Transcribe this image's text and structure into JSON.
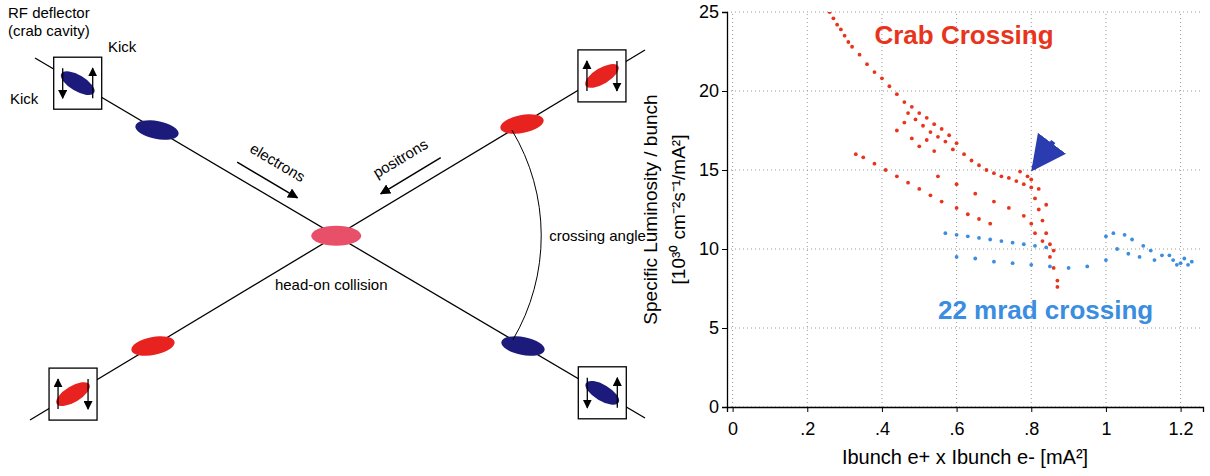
{
  "diagram": {
    "title": [
      "RF deflector",
      "(crab cavity)"
    ],
    "kick_labels": [
      "Kick",
      "Kick"
    ],
    "beams": [
      {
        "label": "electrons",
        "color": "#1c1a7a"
      },
      {
        "label": "positrons",
        "color": "#e8231f"
      }
    ],
    "crossing_label": "crossing angle",
    "collision_label": "head-on collision"
  },
  "chart_data": {
    "type": "scatter",
    "y_label": [
      "Specific Luminosity / bunch",
      "[10³⁰ cm⁻²s⁻¹/mA²]"
    ],
    "x_label": "Ibunch e+ x Ibunch e- [mA²]",
    "xlim": [
      -0.015,
      1.26
    ],
    "xticks": [
      0,
      {
        "value": 0.2,
        "label": ".2"
      },
      {
        "value": 0.4,
        "label": ".4"
      },
      {
        "value": 0.6,
        "label": ".6"
      },
      {
        "value": 0.8,
        "label": ".8"
      },
      1,
      1.2
    ],
    "ylim": [
      0,
      25
    ],
    "yticks": [
      0,
      5,
      10,
      15,
      20,
      25
    ],
    "grid": true,
    "series": [
      {
        "color": "#3a8de0",
        "marker": "circle",
        "x": [
          0.57,
          0.6,
          0.63,
          0.66,
          0.69,
          0.72,
          0.75,
          0.78,
          0.81,
          0.84,
          0.6,
          0.65,
          0.7,
          0.75,
          0.8,
          0.85,
          0.9,
          0.95,
          1.0,
          1.0,
          1.02,
          1.05,
          1.07,
          1.1,
          1.12,
          1.15,
          1.18,
          1.2,
          1.22,
          1.23,
          1.03,
          1.06,
          1.09,
          1.13,
          1.17,
          1.21,
          1.19
        ],
        "values": [
          11.0,
          10.9,
          10.8,
          10.7,
          10.6,
          10.5,
          10.4,
          10.3,
          10.2,
          10.1,
          9.5,
          9.4,
          9.2,
          9.1,
          9.0,
          8.9,
          8.8,
          8.9,
          9.3,
          10.8,
          11.0,
          10.9,
          10.6,
          10.2,
          9.9,
          9.6,
          9.3,
          9.1,
          9.0,
          9.2,
          10.0,
          9.7,
          9.5,
          9.3,
          9.6,
          9.4,
          9.0
        ]
      },
      {
        "color": "#e8341c",
        "marker": "circle",
        "x": [
          0.26,
          0.27,
          0.28,
          0.29,
          0.3,
          0.31,
          0.32,
          0.34,
          0.36,
          0.38,
          0.4,
          0.42,
          0.44,
          0.46,
          0.47,
          0.48,
          0.49,
          0.5,
          0.51,
          0.52,
          0.53,
          0.54,
          0.55,
          0.56,
          0.57,
          0.58,
          0.59,
          0.6,
          0.62,
          0.64,
          0.66,
          0.68,
          0.7,
          0.72,
          0.74,
          0.76,
          0.77,
          0.78,
          0.79,
          0.8,
          0.8,
          0.81,
          0.82,
          0.82,
          0.83,
          0.84,
          0.84,
          0.85,
          0.85,
          0.86,
          0.86,
          0.87,
          0.87,
          0.44,
          0.46,
          0.48,
          0.5,
          0.52,
          0.54,
          0.33,
          0.35,
          0.38,
          0.41,
          0.44,
          0.47,
          0.5,
          0.53,
          0.56,
          0.6,
          0.63,
          0.66,
          0.69,
          0.55,
          0.6,
          0.65,
          0.7,
          0.74,
          0.78,
          0.8,
          0.81,
          0.83
        ],
        "values": [
          25.0,
          24.6,
          24.2,
          23.9,
          23.5,
          23.1,
          22.8,
          22.3,
          21.7,
          21.2,
          20.8,
          20.3,
          19.8,
          19.3,
          18.6,
          19.0,
          18.2,
          18.6,
          17.8,
          18.3,
          17.4,
          17.9,
          17.1,
          17.6,
          16.8,
          17.2,
          16.3,
          16.7,
          16.0,
          15.6,
          15.3,
          15.0,
          14.8,
          14.6,
          14.5,
          14.3,
          14.9,
          14.1,
          14.6,
          13.9,
          14.4,
          13.2,
          12.5,
          13.8,
          11.8,
          11.0,
          12.8,
          10.3,
          9.5,
          8.8,
          9.9,
          8.0,
          7.6,
          17.5,
          18.0,
          17.0,
          16.5,
          16.9,
          16.2,
          16.0,
          15.8,
          15.4,
          15.0,
          14.6,
          14.2,
          13.8,
          13.4,
          13.0,
          12.6,
          12.2,
          11.9,
          11.6,
          14.6,
          14.1,
          13.5,
          13.0,
          12.6,
          12.1,
          11.6,
          11.0,
          10.5
        ]
      }
    ],
    "annotations": [
      {
        "text": "Crab Crossing",
        "x": 0.38,
        "y": 23.0,
        "color": "#e8341c"
      },
      {
        "text": "22 mrad crossing",
        "x": 0.55,
        "y": 5.6,
        "color": "#3a8de0"
      }
    ],
    "arrow": {
      "x": 0.8,
      "y": 14.9,
      "color": "#2b3bb0"
    }
  }
}
